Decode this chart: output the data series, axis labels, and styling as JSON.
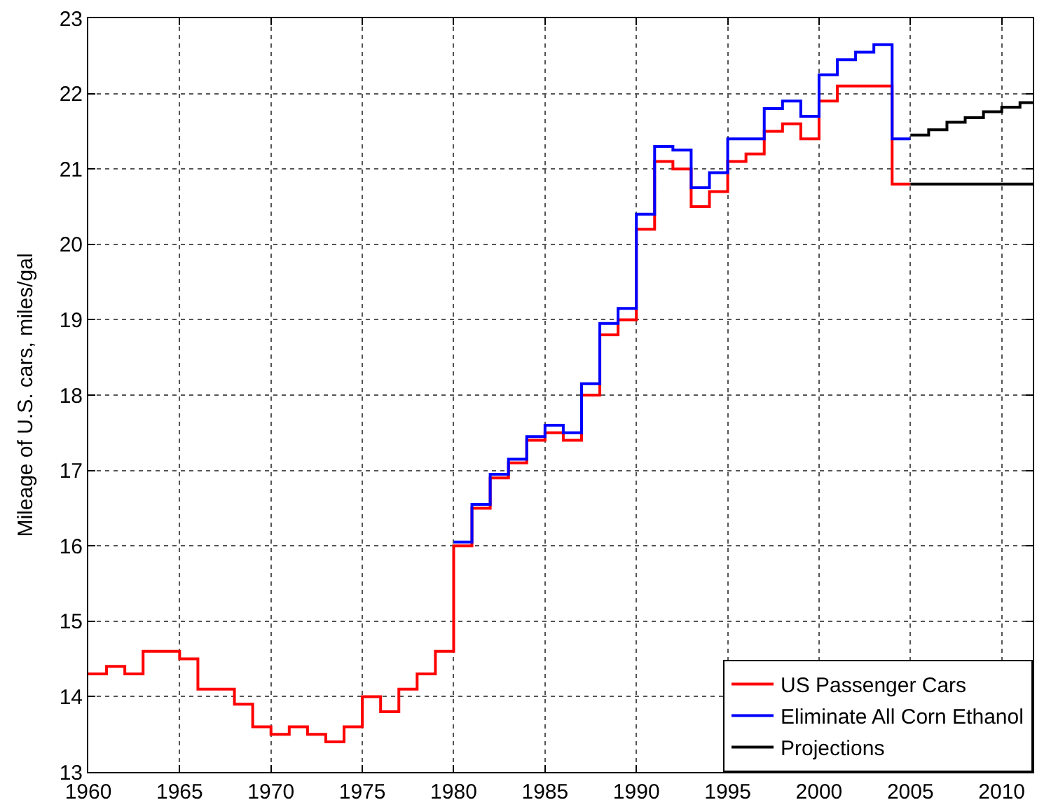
{
  "chart_data": {
    "type": "step",
    "ylabel": "Mileage of U.S. cars, miles/gal",
    "xlim": [
      1960,
      2011.7
    ],
    "xticks": [
      1960,
      1965,
      1970,
      1975,
      1980,
      1985,
      1990,
      1995,
      2000,
      2005,
      2010
    ],
    "ylim": [
      13,
      23
    ],
    "yticks": [
      13,
      14,
      15,
      16,
      17,
      18,
      19,
      20,
      21,
      22,
      23
    ],
    "grid": true,
    "legend": "bottom right",
    "line_style": "solid",
    "marker": "none",
    "series": [
      {
        "name": "US Passenger Cars",
        "color": "#ff0000",
        "x": [
          1960,
          1961,
          1962,
          1963,
          1964,
          1965,
          1966,
          1967,
          1968,
          1969,
          1970,
          1971,
          1972,
          1973,
          1974,
          1975,
          1976,
          1977,
          1978,
          1979,
          1980,
          1981,
          1982,
          1983,
          1984,
          1985,
          1986,
          1987,
          1988,
          1989,
          1990,
          1991,
          1992,
          1993,
          1994,
          1995,
          1996,
          1997,
          1998,
          1999,
          2000,
          2001,
          2002,
          2003,
          2004,
          2005
        ],
        "values": [
          14.3,
          14.4,
          14.3,
          14.6,
          14.6,
          14.5,
          14.1,
          14.1,
          13.9,
          13.6,
          13.5,
          13.6,
          13.5,
          13.4,
          13.6,
          14.0,
          13.8,
          14.1,
          14.3,
          14.6,
          16.0,
          16.5,
          16.9,
          17.1,
          17.4,
          17.5,
          17.4,
          18.0,
          18.8,
          19.0,
          20.2,
          21.1,
          21.0,
          20.5,
          20.7,
          21.1,
          21.2,
          21.5,
          21.6,
          21.4,
          21.9,
          22.1,
          22.1,
          22.1,
          20.8,
          20.8
        ]
      },
      {
        "name": "Eliminate All Corn Ethanol",
        "color": "#0000ff",
        "x": [
          1980,
          1981,
          1982,
          1983,
          1984,
          1985,
          1986,
          1987,
          1988,
          1989,
          1990,
          1991,
          1992,
          1993,
          1994,
          1995,
          1996,
          1997,
          1998,
          1999,
          2000,
          2001,
          2002,
          2003,
          2004,
          2005
        ],
        "values": [
          16.05,
          16.55,
          16.95,
          17.15,
          17.45,
          17.6,
          17.5,
          18.15,
          18.95,
          19.15,
          20.4,
          21.3,
          21.25,
          20.75,
          20.95,
          21.4,
          21.4,
          21.8,
          21.9,
          21.7,
          22.25,
          22.45,
          22.55,
          22.65,
          21.4,
          21.4
        ]
      },
      {
        "name": "Projections",
        "color": "#000000",
        "x": [
          2005,
          2006,
          2007,
          2008,
          2009,
          2010,
          2011,
          2011.7
        ],
        "values": [
          21.45,
          21.52,
          21.62,
          21.68,
          21.76,
          21.82,
          21.88,
          21.88
        ]
      },
      {
        "color": "#000000",
        "x": [
          2005,
          2011.7
        ],
        "values": [
          20.8,
          20.8
        ]
      }
    ]
  }
}
